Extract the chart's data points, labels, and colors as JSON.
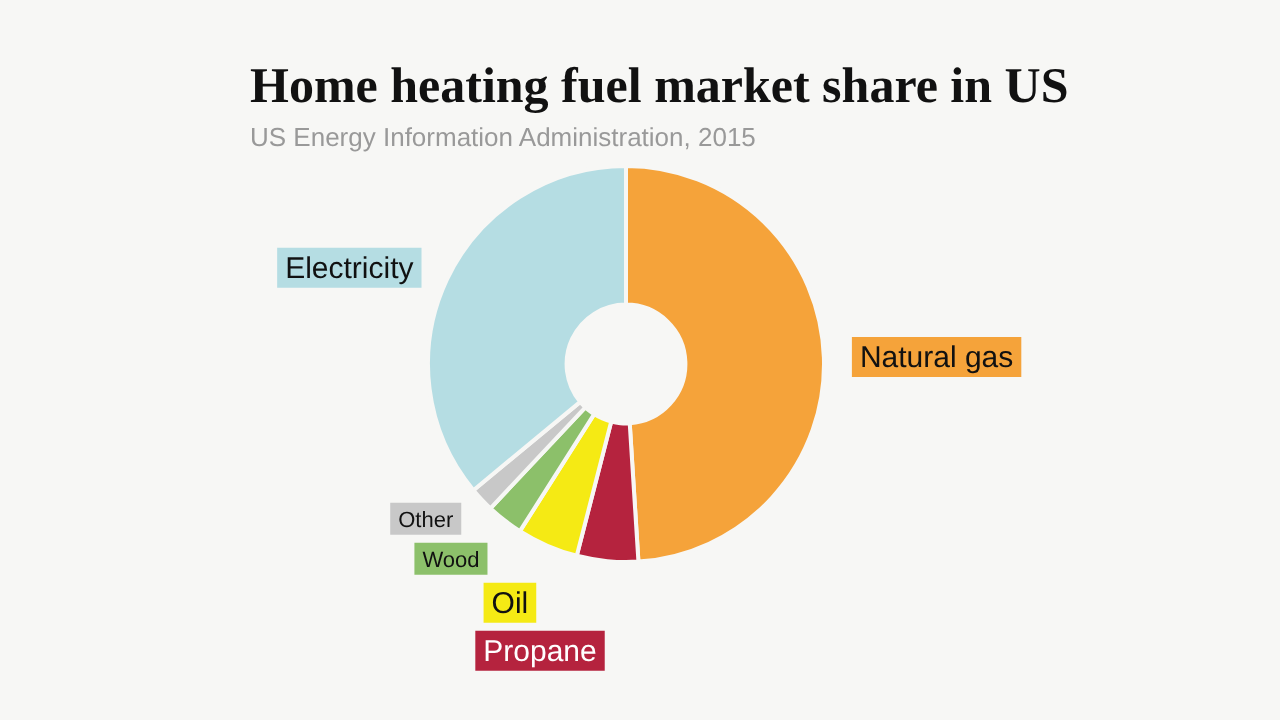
{
  "chart_data": {
    "type": "donut",
    "title": "Home heating fuel market share in US",
    "subtitle": "US Energy Information Administration, 2015",
    "categories": [
      "Natural gas",
      "Propane",
      "Oil",
      "Wood",
      "Other",
      "Electricity"
    ],
    "values": [
      49,
      5,
      5,
      3,
      2,
      36
    ],
    "colors": [
      "#f5a33a",
      "#b5233e",
      "#f5ea14",
      "#8cc06a",
      "#c8c8c8",
      "#b5dde3"
    ],
    "legend": false
  }
}
